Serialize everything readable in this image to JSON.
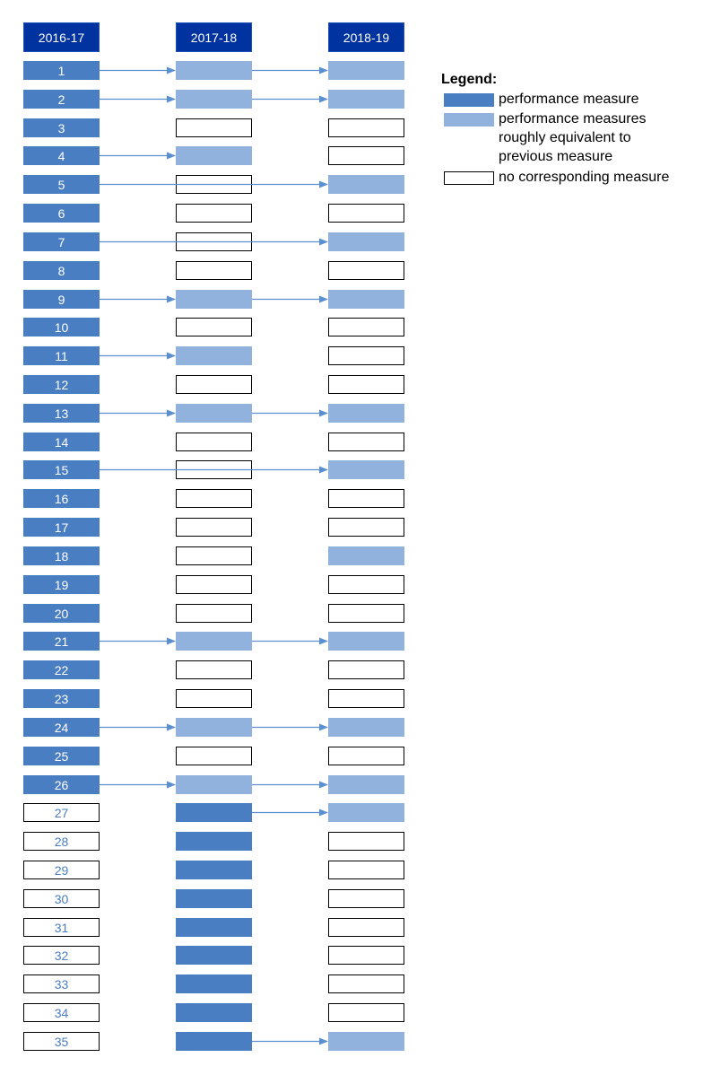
{
  "columns": [
    {
      "header": "2016-17"
    },
    {
      "header": "2017-18"
    },
    {
      "header": "2018-19"
    }
  ],
  "colors": {
    "header": "#0033a0",
    "performance": "#4a7ec2",
    "equivalent": "#90b2dc",
    "arrow": "#5b8fd0"
  },
  "rows": [
    {
      "label": "1",
      "cells": [
        "perf",
        "equiv",
        "equiv"
      ],
      "arrows": [
        [
          0,
          1
        ],
        [
          1,
          2
        ]
      ]
    },
    {
      "label": "2",
      "cells": [
        "perf",
        "equiv",
        "equiv"
      ],
      "arrows": [
        [
          0,
          1
        ],
        [
          1,
          2
        ]
      ]
    },
    {
      "label": "3",
      "cells": [
        "perf",
        "none",
        "none"
      ],
      "arrows": []
    },
    {
      "label": "4",
      "cells": [
        "perf",
        "equiv",
        "none"
      ],
      "arrows": [
        [
          0,
          1
        ]
      ]
    },
    {
      "label": "5",
      "cells": [
        "perf",
        "none",
        "equiv"
      ],
      "arrows": [
        [
          0,
          2
        ]
      ]
    },
    {
      "label": "6",
      "cells": [
        "perf",
        "none",
        "none"
      ],
      "arrows": []
    },
    {
      "label": "7",
      "cells": [
        "perf",
        "none",
        "equiv"
      ],
      "arrows": [
        [
          0,
          2
        ]
      ]
    },
    {
      "label": "8",
      "cells": [
        "perf",
        "none",
        "none"
      ],
      "arrows": []
    },
    {
      "label": "9",
      "cells": [
        "perf",
        "equiv",
        "equiv"
      ],
      "arrows": [
        [
          0,
          1
        ],
        [
          1,
          2
        ]
      ]
    },
    {
      "label": "10",
      "cells": [
        "perf",
        "none",
        "none"
      ],
      "arrows": []
    },
    {
      "label": "11",
      "cells": [
        "perf",
        "equiv",
        "none"
      ],
      "arrows": [
        [
          0,
          1
        ]
      ]
    },
    {
      "label": "12",
      "cells": [
        "perf",
        "none",
        "none"
      ],
      "arrows": []
    },
    {
      "label": "13",
      "cells": [
        "perf",
        "equiv",
        "equiv"
      ],
      "arrows": [
        [
          0,
          1
        ],
        [
          1,
          2
        ]
      ]
    },
    {
      "label": "14",
      "cells": [
        "perf",
        "none",
        "none"
      ],
      "arrows": []
    },
    {
      "label": "15",
      "cells": [
        "perf",
        "none",
        "equiv"
      ],
      "arrows": [
        [
          0,
          2
        ]
      ]
    },
    {
      "label": "16",
      "cells": [
        "perf",
        "none",
        "none"
      ],
      "arrows": []
    },
    {
      "label": "17",
      "cells": [
        "perf",
        "none",
        "none"
      ],
      "arrows": []
    },
    {
      "label": "18",
      "cells": [
        "perf",
        "none",
        "equiv"
      ],
      "arrows": []
    },
    {
      "label": "19",
      "cells": [
        "perf",
        "none",
        "none"
      ],
      "arrows": []
    },
    {
      "label": "20",
      "cells": [
        "perf",
        "none",
        "none"
      ],
      "arrows": []
    },
    {
      "label": "21",
      "cells": [
        "perf",
        "equiv",
        "equiv"
      ],
      "arrows": [
        [
          0,
          1
        ],
        [
          1,
          2
        ]
      ]
    },
    {
      "label": "22",
      "cells": [
        "perf",
        "none",
        "none"
      ],
      "arrows": []
    },
    {
      "label": "23",
      "cells": [
        "perf",
        "none",
        "none"
      ],
      "arrows": []
    },
    {
      "label": "24",
      "cells": [
        "perf",
        "equiv",
        "equiv"
      ],
      "arrows": [
        [
          0,
          1
        ],
        [
          1,
          2
        ]
      ]
    },
    {
      "label": "25",
      "cells": [
        "perf",
        "none",
        "none"
      ],
      "arrows": []
    },
    {
      "label": "26",
      "cells": [
        "perf",
        "equiv",
        "equiv"
      ],
      "arrows": [
        [
          0,
          1
        ],
        [
          1,
          2
        ]
      ]
    },
    {
      "label": "27",
      "cells": [
        "none",
        "perf",
        "equiv"
      ],
      "arrows": [
        [
          1,
          2
        ]
      ]
    },
    {
      "label": "28",
      "cells": [
        "none",
        "perf",
        "none"
      ],
      "arrows": []
    },
    {
      "label": "29",
      "cells": [
        "none",
        "perf",
        "none"
      ],
      "arrows": []
    },
    {
      "label": "30",
      "cells": [
        "none",
        "perf",
        "none"
      ],
      "arrows": []
    },
    {
      "label": "31",
      "cells": [
        "none",
        "perf",
        "none"
      ],
      "arrows": []
    },
    {
      "label": "32",
      "cells": [
        "none",
        "perf",
        "none"
      ],
      "arrows": []
    },
    {
      "label": "33",
      "cells": [
        "none",
        "perf",
        "none"
      ],
      "arrows": []
    },
    {
      "label": "34",
      "cells": [
        "none",
        "perf",
        "none"
      ],
      "arrows": []
    },
    {
      "label": "35",
      "cells": [
        "none",
        "perf",
        "equiv"
      ],
      "arrows": [
        [
          1,
          2
        ]
      ]
    }
  ],
  "legend": {
    "title": "Legend:",
    "items": [
      {
        "type": "perf",
        "text": "performance measure"
      },
      {
        "type": "equiv",
        "text": "performance measures\nroughly equivalent to\nprevious measure"
      },
      {
        "type": "none",
        "text": "no corresponding measure"
      }
    ]
  }
}
